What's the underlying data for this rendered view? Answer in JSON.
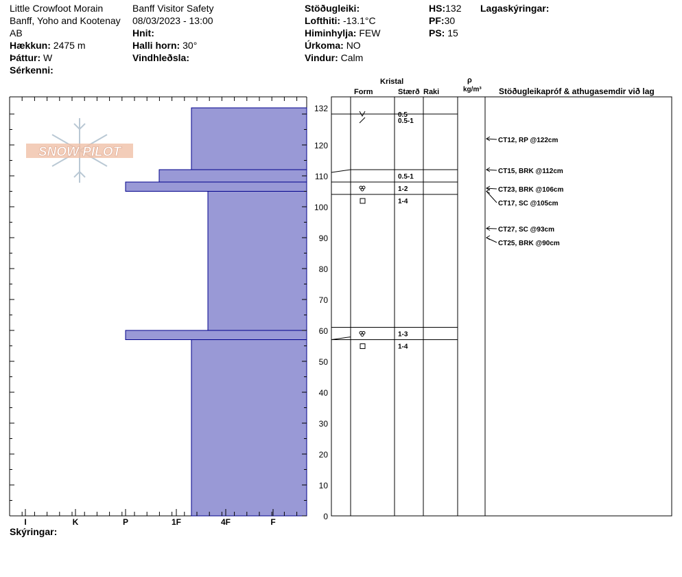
{
  "header": {
    "location": "Little Crowfoot Morain",
    "region": "Banff, Yoho and Kootenay",
    "province": "AB",
    "elevation_label": "Hækkun:",
    "elevation_value": "2475 m",
    "aspect_label": "Þáttur:",
    "aspect_value": "W",
    "features_label": "Sérkenni:",
    "observer": "Banff  Visitor Safety",
    "datetime": "08/03/2023 - 13:00",
    "coords_label": "Hnit:",
    "slope_label": "Halli horn:",
    "slope_value": "30°",
    "wind_loading_label": "Vindhleðsla:",
    "stability_label": "Stöðugleiki:",
    "air_temp_label": "Lofthiti:",
    "air_temp_value": "-13.1°C",
    "sky_label": "Himinhylja:",
    "sky_value": "FEW",
    "precip_label": "Úrkoma:",
    "precip_value": "NO",
    "wind_label": "Vindur:",
    "wind_value": "Calm",
    "hs_label": "HS:",
    "hs_value": "132",
    "pf_label": "PF:",
    "pf_value": "30",
    "ps_label": "PS:",
    "ps_value": "15",
    "layer_notes_label": "Lagaskýringar:"
  },
  "footer": {
    "notes_label": "Skýringar:"
  },
  "logo_text": "SNOW PILOT",
  "columns": {
    "kristal": "Kristal",
    "form": "Form",
    "size": "Stærð",
    "moisture": "Raki",
    "rho": "ρ",
    "density_unit": "kg/m³",
    "tests": "Stöðugleikapróf & athugasemdir við lag"
  },
  "colors": {
    "hardness_fill": "#9999d6",
    "hardness_stroke": "#00008b"
  },
  "chart_data": {
    "type": "bar",
    "y_axis": {
      "range": [
        0,
        132
      ],
      "ticks": [
        0,
        10,
        20,
        30,
        40,
        50,
        60,
        70,
        80,
        90,
        100,
        110,
        120,
        132
      ]
    },
    "x_hardness_scale": [
      "I",
      "K",
      "P",
      "1F",
      "4F",
      "F"
    ],
    "hardness_layers": [
      {
        "top": 132,
        "bottom": 112,
        "hardness": "4F-"
      },
      {
        "top": 112,
        "bottom": 108,
        "hardness": "1F"
      },
      {
        "top": 108,
        "bottom": 105,
        "hardness": "P"
      },
      {
        "top": 105,
        "bottom": 60,
        "hardness": "4F"
      },
      {
        "top": 60,
        "bottom": 57,
        "hardness": "P"
      },
      {
        "top": 57,
        "bottom": 0,
        "hardness": "4F-"
      }
    ],
    "crystal_layers": [
      {
        "top": 132,
        "bottom": 130,
        "form": "precip-icon",
        "size": "0.5"
      },
      {
        "top": 130,
        "bottom": 112,
        "form": "decomposing-icon",
        "size": "0.5-1"
      },
      {
        "top": 112,
        "bottom": 108,
        "form": "",
        "size": "0.5-1"
      },
      {
        "top": 108,
        "bottom": 104,
        "form": "melt-form-icon",
        "size": "1-2"
      },
      {
        "top": 104,
        "bottom": 61,
        "form": "faceted-icon",
        "size": "1-4"
      },
      {
        "top": 61,
        "bottom": 57,
        "form": "melt-form-icon",
        "size": "1-3"
      },
      {
        "top": 57,
        "bottom": 0,
        "form": "faceted-icon",
        "size": "1-4"
      }
    ],
    "tests": [
      {
        "depth": 122,
        "label": "CT12, RP @122cm"
      },
      {
        "depth": 112,
        "label": "CT15, BRK @112cm"
      },
      {
        "depth": 106,
        "label": "CT23, BRK @106cm"
      },
      {
        "depth": 105,
        "label": "CT17, SC @105cm"
      },
      {
        "depth": 93,
        "label": "CT27, SC @93cm"
      },
      {
        "depth": 90,
        "label": "CT25, BRK @90cm"
      }
    ]
  }
}
